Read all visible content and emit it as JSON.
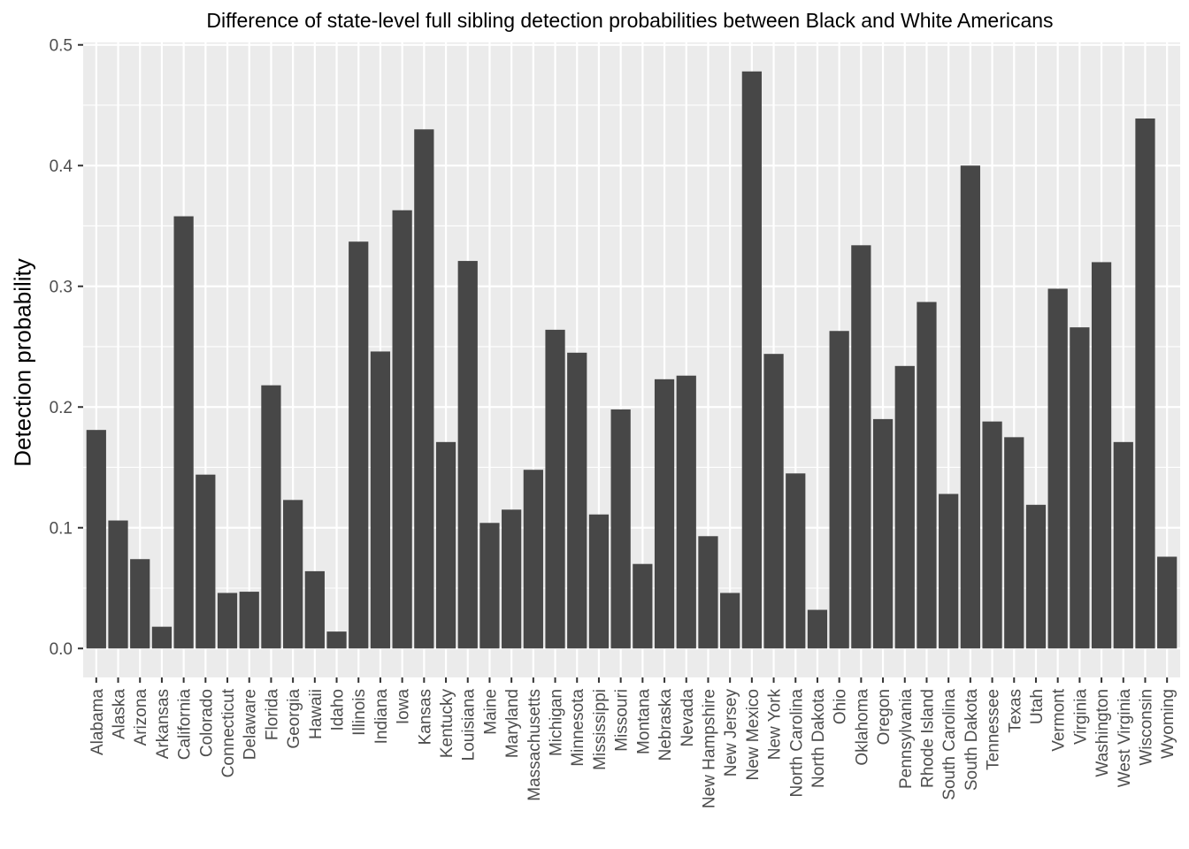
{
  "chart_data": {
    "type": "bar",
    "title": "Difference of state-level full sibling detection probabilities between Black and White Americans",
    "xlabel": "",
    "ylabel": "Detection probability",
    "ylim": [
      -0.024,
      0.502
    ],
    "yticks": [
      "0.0",
      "0.1",
      "0.2",
      "0.3",
      "0.4",
      "0.5"
    ],
    "ytick_values": [
      0,
      0.1,
      0.2,
      0.3,
      0.4,
      0.5
    ],
    "grid": true,
    "categories": [
      "Alabama",
      "Alaska",
      "Arizona",
      "Arkansas",
      "California",
      "Colorado",
      "Connecticut",
      "Delaware",
      "Florida",
      "Georgia",
      "Hawaii",
      "Idaho",
      "Illinois",
      "Indiana",
      "Iowa",
      "Kansas",
      "Kentucky",
      "Louisiana",
      "Maine",
      "Maryland",
      "Massachusetts",
      "Michigan",
      "Minnesota",
      "Mississippi",
      "Missouri",
      "Montana",
      "Nebraska",
      "Nevada",
      "New Hampshire",
      "New Jersey",
      "New Mexico",
      "New York",
      "North Carolina",
      "North Dakota",
      "Ohio",
      "Oklahoma",
      "Oregon",
      "Pennsylvania",
      "Rhode Island",
      "South Carolina",
      "South Dakota",
      "Tennessee",
      "Texas",
      "Utah",
      "Vermont",
      "Virginia",
      "Washington",
      "West Virginia",
      "Wisconsin",
      "Wyoming"
    ],
    "values": [
      0.181,
      0.106,
      0.074,
      0.018,
      0.358,
      0.144,
      0.046,
      0.047,
      0.218,
      0.123,
      0.064,
      0.014,
      0.337,
      0.246,
      0.363,
      0.43,
      0.171,
      0.321,
      0.104,
      0.115,
      0.148,
      0.264,
      0.245,
      0.111,
      0.198,
      0.07,
      0.223,
      0.226,
      0.093,
      0.046,
      0.478,
      0.244,
      0.145,
      0.032,
      0.263,
      0.334,
      0.19,
      0.234,
      0.287,
      0.128,
      0.4,
      0.188,
      0.175,
      0.119,
      0.298,
      0.266,
      0.32,
      0.171,
      0.439,
      0.076
    ],
    "colors": {
      "bar": "#474747",
      "panel": "#ebebeb",
      "grid": "#ffffff",
      "tick_text": "#4d4d4d",
      "tick_mark": "#333333"
    }
  }
}
